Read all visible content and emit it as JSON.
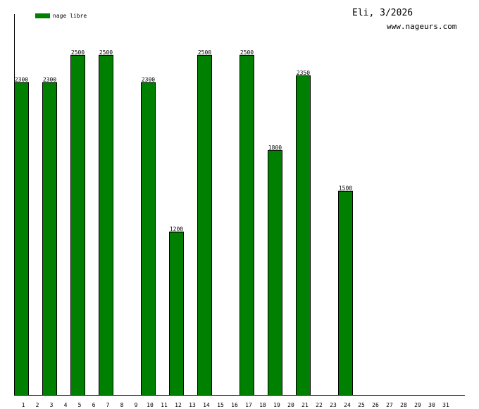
{
  "chart_data": {
    "type": "bar",
    "title": "Eli, 3/2026",
    "source_label": "www.nageurs.com",
    "legend": {
      "label": "nage libre",
      "color": "#008000",
      "placement": "top-left"
    },
    "ylim": [
      0,
      2800
    ],
    "grid": false,
    "categories": [
      "1",
      "2",
      "3",
      "4",
      "5",
      "6",
      "7",
      "8",
      "9",
      "10",
      "11",
      "12",
      "13",
      "14",
      "15",
      "16",
      "17",
      "18",
      "19",
      "20",
      "21",
      "22",
      "23",
      "24",
      "25",
      "26",
      "27",
      "28",
      "29",
      "30",
      "31"
    ],
    "series": [
      {
        "name": "nage libre",
        "color": "#008000",
        "values": [
          2300,
          0,
          2300,
          0,
          2500,
          0,
          2500,
          0,
          0,
          2300,
          0,
          1200,
          0,
          2500,
          0,
          0,
          2500,
          0,
          1800,
          0,
          2350,
          0,
          0,
          1500,
          0,
          0,
          0,
          0,
          0,
          0,
          0
        ]
      }
    ]
  }
}
